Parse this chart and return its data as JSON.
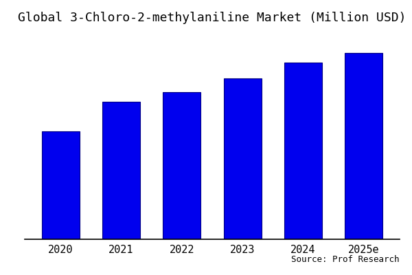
{
  "title": "Global 3-Chloro-2-methylaniline Market (Million USD)",
  "categories": [
    "2020",
    "2021",
    "2022",
    "2023",
    "2024",
    "2025e"
  ],
  "values": [
    55,
    70,
    75,
    82,
    90,
    95
  ],
  "bar_color": "#0000EE",
  "background_color": "#ffffff",
  "source_text": "Source: Prof Research",
  "title_fontsize": 13,
  "tick_fontsize": 11,
  "source_fontsize": 9,
  "bar_width": 0.62,
  "ylim": [
    0,
    105
  ]
}
